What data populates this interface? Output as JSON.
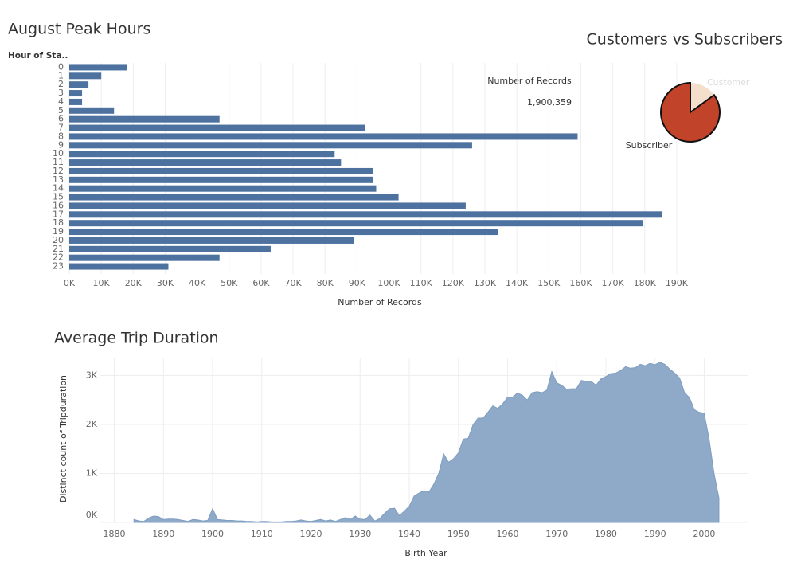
{
  "chart_data": [
    {
      "type": "barh",
      "title": "August Peak Hours",
      "y_label": "Hour of Sta..",
      "x_label": "Number of Records",
      "categories": [
        "0",
        "1",
        "2",
        "3",
        "4",
        "5",
        "6",
        "7",
        "8",
        "9",
        "10",
        "11",
        "12",
        "13",
        "14",
        "15",
        "16",
        "17",
        "18",
        "19",
        "20",
        "21",
        "22",
        "23"
      ],
      "values": [
        18000,
        10000,
        6000,
        4000,
        4000,
        14000,
        47000,
        92500,
        159000,
        126000,
        83000,
        85000,
        95000,
        95000,
        96000,
        103000,
        124000,
        185500,
        179500,
        134000,
        89000,
        63000,
        47000,
        31000
      ],
      "color": "#4e72a0",
      "grid": true,
      "xlim": [
        0,
        195000
      ],
      "xticks": [
        {
          "value": 0,
          "label": "0K"
        },
        {
          "value": 10000,
          "label": "10K"
        },
        {
          "value": 20000,
          "label": "20K"
        },
        {
          "value": 30000,
          "label": "30K"
        },
        {
          "value": 40000,
          "label": "40K"
        },
        {
          "value": 50000,
          "label": "50K"
        },
        {
          "value": 60000,
          "label": "60K"
        },
        {
          "value": 70000,
          "label": "70K"
        },
        {
          "value": 80000,
          "label": "80K"
        },
        {
          "value": 90000,
          "label": "90K"
        },
        {
          "value": 100000,
          "label": "100K"
        },
        {
          "value": 110000,
          "label": "110K"
        },
        {
          "value": 120000,
          "label": "120K"
        },
        {
          "value": 130000,
          "label": "130K"
        },
        {
          "value": 140000,
          "label": "140K"
        },
        {
          "value": 150000,
          "label": "150K"
        },
        {
          "value": 160000,
          "label": "160K"
        },
        {
          "value": 170000,
          "label": "170K"
        },
        {
          "value": 180000,
          "label": "180K"
        },
        {
          "value": 190000,
          "label": "190K"
        }
      ]
    },
    {
      "type": "pie",
      "title": "Customers vs Subscribers",
      "annotations": [
        "Number of Records",
        "1,900,359"
      ],
      "categories": [
        "Customer",
        "Subscriber"
      ],
      "values": [
        15,
        85
      ],
      "colors": [
        "#f3dfcc",
        "#c0432a"
      ]
    },
    {
      "type": "area",
      "title": "Average Trip Duration",
      "x_label": "Birth Year",
      "y_label": "Distinct count of Tripduration",
      "color": "#8eaac8",
      "grid": true,
      "xlim": [
        1877,
        2009
      ],
      "ylim": [
        0,
        3350
      ],
      "xticks": [
        1880,
        1890,
        1900,
        1910,
        1920,
        1930,
        1940,
        1950,
        1960,
        1970,
        1980,
        1990,
        2000
      ],
      "yticks": [
        {
          "value": 0,
          "label": "0K"
        },
        {
          "value": 1000,
          "label": "1K"
        },
        {
          "value": 2000,
          "label": "2K"
        },
        {
          "value": 3000,
          "label": "3K"
        }
      ],
      "x": [
        1884,
        1885,
        1886,
        1887,
        1888,
        1889,
        1890,
        1891,
        1892,
        1893,
        1894,
        1895,
        1896,
        1897,
        1898,
        1899,
        1900,
        1901,
        1902,
        1903,
        1904,
        1905,
        1906,
        1907,
        1908,
        1909,
        1910,
        1911,
        1912,
        1913,
        1914,
        1915,
        1916,
        1917,
        1918,
        1919,
        1920,
        1921,
        1922,
        1923,
        1924,
        1925,
        1926,
        1927,
        1928,
        1929,
        1930,
        1931,
        1932,
        1933,
        1934,
        1935,
        1936,
        1937,
        1938,
        1939,
        1940,
        1941,
        1942,
        1943,
        1944,
        1945,
        1946,
        1947,
        1948,
        1949,
        1950,
        1951,
        1952,
        1953,
        1954,
        1955,
        1956,
        1957,
        1958,
        1959,
        1960,
        1961,
        1962,
        1963,
        1964,
        1965,
        1966,
        1967,
        1968,
        1969,
        1970,
        1971,
        1972,
        1973,
        1974,
        1975,
        1976,
        1977,
        1978,
        1979,
        1980,
        1981,
        1982,
        1983,
        1984,
        1985,
        1986,
        1987,
        1988,
        1989,
        1990,
        1991,
        1992,
        1993,
        1994,
        1995,
        1996,
        1997,
        1998,
        1999,
        2000,
        2001,
        2002,
        2003
      ],
      "values": [
        60,
        30,
        20,
        90,
        130,
        120,
        60,
        70,
        70,
        60,
        40,
        20,
        60,
        50,
        30,
        40,
        280,
        60,
        50,
        40,
        40,
        30,
        30,
        20,
        20,
        10,
        20,
        20,
        10,
        10,
        10,
        20,
        20,
        30,
        50,
        30,
        20,
        40,
        60,
        30,
        50,
        20,
        60,
        100,
        60,
        130,
        70,
        60,
        150,
        30,
        80,
        190,
        280,
        290,
        140,
        230,
        330,
        540,
        600,
        650,
        620,
        780,
        1000,
        1400,
        1230,
        1300,
        1420,
        1700,
        1720,
        2000,
        2130,
        2130,
        2250,
        2380,
        2330,
        2420,
        2560,
        2560,
        2640,
        2600,
        2500,
        2650,
        2670,
        2650,
        2700,
        3080,
        2850,
        2800,
        2720,
        2730,
        2730,
        2900,
        2880,
        2880,
        2800,
        2930,
        2980,
        3040,
        3050,
        3100,
        3180,
        3150,
        3160,
        3230,
        3200,
        3250,
        3220,
        3270,
        3230,
        3130,
        3050,
        2950,
        2650,
        2550,
        2300,
        2250,
        2230,
        1700,
        1000,
        500
      ]
    }
  ]
}
